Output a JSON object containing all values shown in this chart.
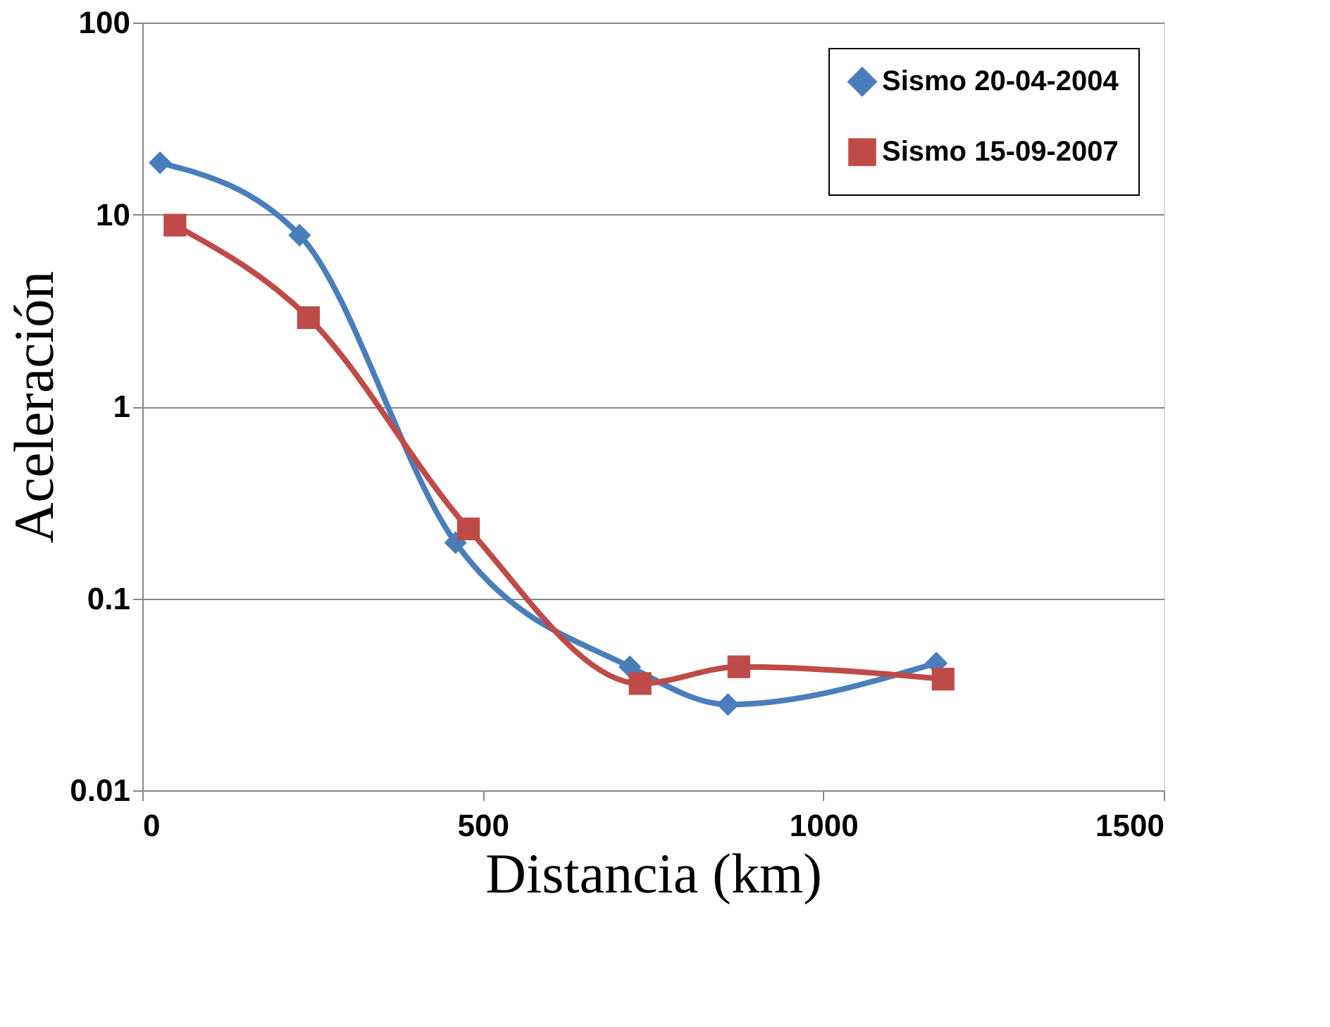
{
  "chart_data": {
    "type": "line",
    "xlabel": "Distancia (km)",
    "ylabel": "Aceleración",
    "series": [
      {
        "name": "Sismo 20-04-2004",
        "color": "#4a7ebb",
        "marker": "diamond",
        "x": [
          26,
          231,
          460,
          716,
          860,
          1166
        ],
        "values": [
          18.6,
          7.8,
          0.195,
          0.044,
          0.028,
          0.046
        ]
      },
      {
        "name": "Sismo 15-09-2007",
        "color": "#be4b48",
        "marker": "square",
        "x": [
          48,
          244,
          479,
          731,
          876,
          1176
        ],
        "values": [
          8.8,
          2.9,
          0.23,
          0.036,
          0.044,
          0.038
        ]
      }
    ],
    "xlim": [
      0,
      1500
    ],
    "xticks": [
      0,
      500,
      1000,
      1500
    ],
    "ylim": [
      0.01,
      100
    ],
    "yticks": [
      0.01,
      0.1,
      1,
      10,
      100
    ],
    "log": "y",
    "grid": "y",
    "legend": "top right"
  }
}
